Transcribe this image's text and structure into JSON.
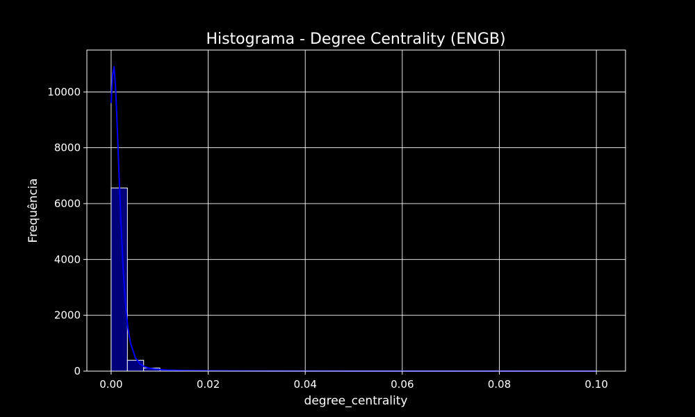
{
  "chart_data": {
    "type": "bar",
    "title": "Histograma - Degree Centrality (ENGB)",
    "xlabel": "degree_centrality",
    "ylabel": "Frequência",
    "xlim": [
      -0.005,
      0.106
    ],
    "ylim": [
      0,
      11500
    ],
    "xticks": [
      0.0,
      0.02,
      0.04,
      0.06,
      0.08,
      0.1
    ],
    "xtick_labels": [
      "0.00",
      "0.02",
      "0.04",
      "0.06",
      "0.08",
      "0.10"
    ],
    "yticks": [
      0,
      2000,
      4000,
      6000,
      8000,
      10000
    ],
    "ytick_labels": [
      "0",
      "2000",
      "4000",
      "6000",
      "8000",
      "10000"
    ],
    "grid": true,
    "bins": {
      "start": 0.0,
      "width": 0.00335,
      "counts": [
        6560,
        390,
        110,
        40,
        20,
        10,
        6,
        4,
        3,
        2,
        2,
        1,
        1,
        1,
        1,
        1,
        1,
        1,
        1,
        1,
        1,
        1,
        1,
        1,
        1,
        1,
        1,
        1,
        1,
        1
      ]
    },
    "kde": {
      "name": "",
      "x": [
        0.0,
        0.0003,
        0.0006,
        0.0009,
        0.0012,
        0.0016,
        0.002,
        0.0025,
        0.003,
        0.0035,
        0.004,
        0.005,
        0.006,
        0.007,
        0.008,
        0.01,
        0.012,
        0.015,
        0.02,
        0.03,
        0.05,
        0.07,
        0.1
      ],
      "y": [
        9600,
        10600,
        10900,
        10200,
        9000,
        7200,
        5400,
        3600,
        2300,
        1500,
        1000,
        480,
        250,
        150,
        100,
        55,
        35,
        22,
        12,
        6,
        3,
        2,
        1
      ]
    },
    "colors": {
      "background": "#000000",
      "bar_fill": "#00007a",
      "bar_stroke": "#ffffff",
      "kde_line": "#0000ff",
      "grid": "#ffffff",
      "text": "#ffffff"
    }
  }
}
